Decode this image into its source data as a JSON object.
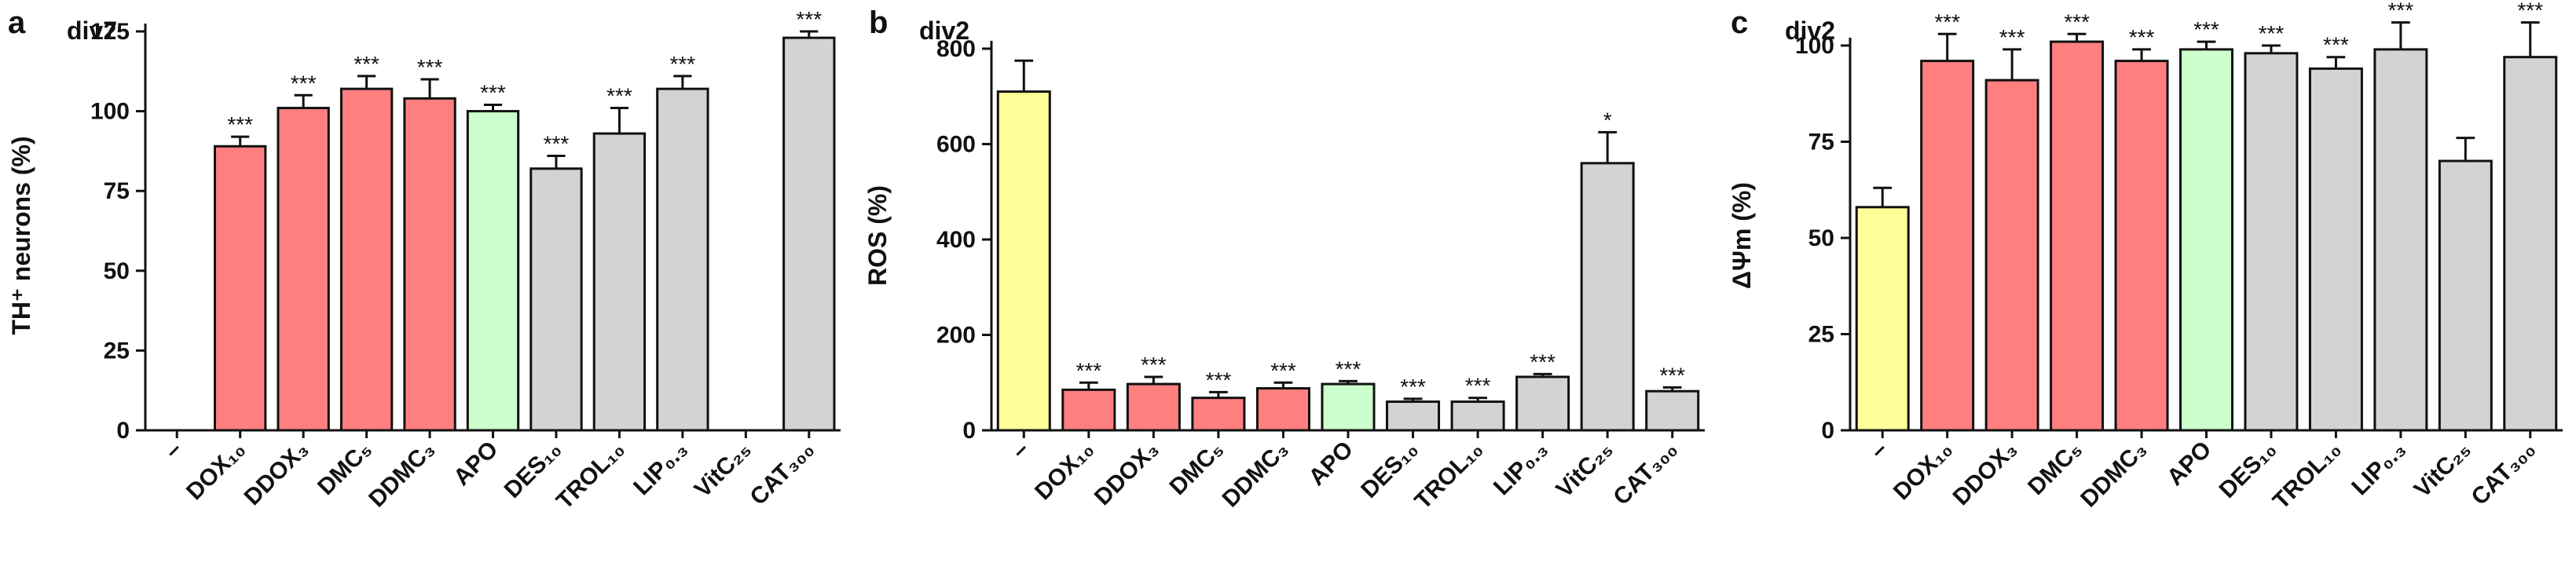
{
  "figure": {
    "colors": {
      "control": "#ffff99",
      "red": "#ff7f7f",
      "green": "#ccffcc",
      "gray": "#d3d3d3",
      "stroke": "#111111"
    }
  },
  "chart_data": [
    {
      "panel": "a",
      "type": "bar",
      "title": "div7",
      "ylabel": "TH⁺ neurons (%)",
      "ylim": [
        0,
        125
      ],
      "yticks": [
        0,
        25,
        50,
        75,
        100,
        125
      ],
      "grid": false,
      "categories": [
        "–",
        "DOX₁₀",
        "DDOX₃",
        "DMC₅",
        "DDMC₃",
        "APO",
        "DES₁₀",
        "TROL₁₀",
        "LIP₀.₃",
        "VitC₂₅",
        "CAT₃₀₀"
      ],
      "values": [
        null,
        89,
        101,
        107,
        104,
        100,
        82,
        93,
        107,
        null,
        123
      ],
      "errors": [
        null,
        3,
        4,
        4,
        6,
        2,
        4,
        8,
        4,
        null,
        2
      ],
      "significance": [
        "",
        "***",
        "***",
        "***",
        "***",
        "***",
        "***",
        "***",
        "***",
        "",
        "***"
      ],
      "colors": [
        "control",
        "red",
        "red",
        "red",
        "red",
        "green",
        "gray",
        "gray",
        "gray",
        "gray",
        "gray"
      ]
    },
    {
      "panel": "b",
      "type": "bar",
      "title": "div2",
      "ylabel": "ROS  (%)",
      "ylim": [
        0,
        800
      ],
      "yticks": [
        0,
        200,
        400,
        600,
        800
      ],
      "grid": false,
      "categories": [
        "–",
        "DOX₁₀",
        "DDOX₃",
        "DMC₅",
        "DDMC₃",
        "APO",
        "DES₁₀",
        "TROL₁₀",
        "LIP₀.₃",
        "VitC₂₅",
        "CAT₃₀₀"
      ],
      "values": [
        710,
        85,
        97,
        68,
        88,
        97,
        60,
        60,
        112,
        560,
        82
      ],
      "errors": [
        65,
        15,
        15,
        12,
        12,
        6,
        6,
        8,
        6,
        65,
        8
      ],
      "significance": [
        "",
        "***",
        "***",
        "***",
        "***",
        "***",
        "***",
        "***",
        "***",
        "*",
        "***"
      ],
      "colors": [
        "control",
        "red",
        "red",
        "red",
        "red",
        "green",
        "gray",
        "gray",
        "gray",
        "gray",
        "gray"
      ]
    },
    {
      "panel": "c",
      "type": "bar",
      "title": "div2",
      "ylabel": "ΔΨm (%)",
      "ylim": [
        0,
        100
      ],
      "yticks": [
        0,
        25,
        50,
        75,
        100
      ],
      "grid": false,
      "categories": [
        "–",
        "DOX₁₀",
        "DDOX₃",
        "DMC₅",
        "DDMC₃",
        "APO",
        "DES₁₀",
        "TROL₁₀",
        "LIP₀.₃",
        "VitC₂₅",
        "CAT₃₀₀"
      ],
      "values": [
        58,
        96,
        91,
        101,
        96,
        99,
        98,
        94,
        99,
        70,
        97
      ],
      "errors": [
        5,
        7,
        8,
        2,
        3,
        2,
        2,
        3,
        7,
        6,
        9
      ],
      "significance": [
        "",
        "***",
        "***",
        "***",
        "***",
        "***",
        "***",
        "***",
        "***",
        "",
        "***"
      ],
      "colors": [
        "control",
        "red",
        "red",
        "red",
        "red",
        "green",
        "gray",
        "gray",
        "gray",
        "gray",
        "gray"
      ]
    }
  ]
}
